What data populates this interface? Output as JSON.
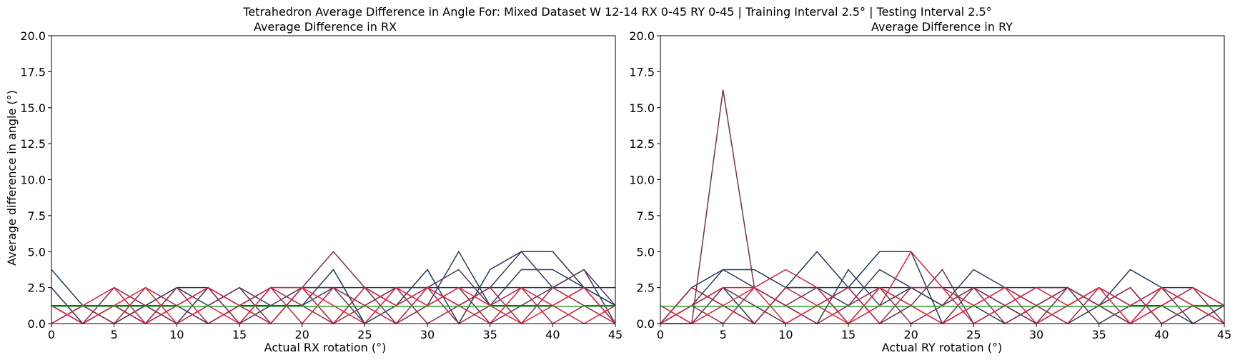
{
  "figure": {
    "suptitle": "Tetrahedron Average Difference in Angle For: Mixed Dataset W 12-14 RX 0-45 RY 0-45 | Training Interval 2.5° | Testing Interval 2.5°"
  },
  "colors": {
    "mean_line": "#2ca02c",
    "series_palette": [
      "#1b3a5c",
      "#2b3f5e",
      "#3a3a5a",
      "#5a3556",
      "#7a2f50",
      "#9a2b4c",
      "#b82747",
      "#d62343",
      "#e8263f"
    ]
  },
  "chart_data": [
    {
      "type": "line",
      "title": "Average Difference in RX",
      "xlabel": "Actual RX rotation (°)",
      "ylabel": "Average difference in angle (°)",
      "xlim": [
        0,
        45
      ],
      "ylim": [
        0,
        20
      ],
      "xticks": [
        "0",
        "5",
        "10",
        "15",
        "20",
        "25",
        "30",
        "35",
        "40",
        "45"
      ],
      "yticks": [
        "0.0",
        "2.5",
        "5.0",
        "7.5",
        "10.0",
        "12.5",
        "15.0",
        "17.5",
        "20.0"
      ],
      "grid": false,
      "x": [
        0,
        2.5,
        5,
        7.5,
        10,
        12.5,
        15,
        17.5,
        20,
        22.5,
        25,
        27.5,
        30,
        32.5,
        35,
        37.5,
        40,
        42.5,
        45
      ],
      "mean_value": 1.2,
      "series": [
        {
          "color": "#1b3a5c",
          "values": [
            3.75,
            1.25,
            0,
            1.25,
            2.5,
            2.5,
            1.25,
            2.5,
            2.5,
            2.5,
            2.5,
            2.5,
            2.5,
            2.5,
            2.5,
            2.5,
            2.5,
            2.5,
            2.5
          ]
        },
        {
          "color": "#1b3a5c",
          "values": [
            2.5,
            0,
            1.25,
            0,
            1.25,
            0,
            1.25,
            1.25,
            1.25,
            3.75,
            0,
            1.25,
            3.75,
            0,
            3.75,
            5.0,
            5.0,
            2.5,
            1.25
          ]
        },
        {
          "color": "#2b3f5e",
          "values": [
            1.25,
            1.25,
            1.25,
            0,
            2.5,
            1.25,
            2.5,
            1.25,
            1.25,
            2.5,
            1.25,
            2.5,
            1.25,
            5.0,
            1.25,
            3.75,
            3.75,
            2.5,
            0
          ]
        },
        {
          "color": "#3a3a5a",
          "values": [
            1.25,
            0,
            1.25,
            1.25,
            0,
            2.5,
            0,
            1.25,
            2.5,
            0,
            2.5,
            1.25,
            2.5,
            1.25,
            2.5,
            5.0,
            2.5,
            3.75,
            0
          ]
        },
        {
          "color": "#5a3556",
          "values": [
            0,
            1.25,
            0,
            1.25,
            1.25,
            0,
            1.25,
            0,
            2.5,
            2.5,
            0,
            2.5,
            2.5,
            3.75,
            1.25,
            1.25,
            2.5,
            3.75,
            1.25
          ]
        },
        {
          "color": "#7a2f50",
          "values": [
            1.25,
            0,
            2.5,
            1.25,
            0,
            1.25,
            2.5,
            0,
            2.5,
            5.0,
            2.5,
            0,
            1.25,
            2.5,
            0,
            1.25,
            1.25,
            2.5,
            0
          ]
        },
        {
          "color": "#9a2b4c",
          "values": [
            0,
            1.25,
            0,
            2.5,
            1.25,
            2.5,
            0,
            2.5,
            1.25,
            0,
            1.25,
            2.5,
            0,
            1.25,
            2.5,
            0,
            2.5,
            1.25,
            0
          ]
        },
        {
          "color": "#b82747",
          "values": [
            1.25,
            0,
            1.25,
            0,
            2.5,
            0,
            1.25,
            2.5,
            0,
            2.5,
            1.25,
            0,
            2.5,
            0,
            1.25,
            2.5,
            0,
            1.25,
            1.25
          ]
        },
        {
          "color": "#d62343",
          "values": [
            0,
            1.25,
            2.5,
            0,
            1.25,
            2.5,
            1.25,
            0,
            2.5,
            0,
            2.5,
            1.25,
            2.5,
            1.25,
            0,
            2.5,
            1.25,
            0,
            1.25
          ]
        },
        {
          "color": "#e8263f",
          "values": [
            1.25,
            0,
            1.25,
            2.5,
            0,
            1.25,
            0,
            2.5,
            2.5,
            1.25,
            0,
            2.5,
            1.25,
            2.5,
            1.25,
            0,
            1.25,
            2.5,
            0
          ]
        }
      ]
    },
    {
      "type": "line",
      "title": "Average Difference in RY",
      "xlabel": "Actual RY rotation (°)",
      "ylabel": "",
      "xlim": [
        0,
        45
      ],
      "ylim": [
        0,
        20
      ],
      "xticks": [
        "0",
        "5",
        "10",
        "15",
        "20",
        "25",
        "30",
        "35",
        "40",
        "45"
      ],
      "yticks": [
        "0.0",
        "2.5",
        "5.0",
        "7.5",
        "10.0",
        "12.5",
        "15.0",
        "17.5",
        "20.0"
      ],
      "grid": false,
      "x": [
        0,
        2.5,
        5,
        7.5,
        10,
        12.5,
        15,
        17.5,
        20,
        22.5,
        25,
        27.5,
        30,
        32.5,
        35,
        37.5,
        40,
        42.5,
        45
      ],
      "mean_value": 1.2,
      "series": [
        {
          "color": "#1b3a5c",
          "values": [
            0,
            2.5,
            3.75,
            3.75,
            2.5,
            2.5,
            2.5,
            2.5,
            2.5,
            2.5,
            2.5,
            2.5,
            2.5,
            2.5,
            1.25,
            3.75,
            2.5,
            2.5,
            1.25
          ]
        },
        {
          "color": "#1b3a5c",
          "values": [
            0,
            1.25,
            2.5,
            0,
            2.5,
            5.0,
            2.5,
            5.0,
            5.0,
            0,
            1.25,
            0,
            1.25,
            2.5,
            1.25,
            0,
            2.5,
            1.25,
            0
          ]
        },
        {
          "color": "#2b3f5e",
          "values": [
            0,
            1.25,
            3.75,
            2.5,
            1.25,
            0,
            3.75,
            1.25,
            2.5,
            1.25,
            2.5,
            1.25,
            0,
            1.25,
            2.5,
            1.25,
            1.25,
            0,
            1.25
          ]
        },
        {
          "color": "#3a3a5a",
          "values": [
            0,
            2.5,
            1.25,
            0,
            2.5,
            2.5,
            1.25,
            3.75,
            2.5,
            1.25,
            3.75,
            2.5,
            1.25,
            0,
            1.25,
            2.5,
            0,
            1.25,
            1.25
          ]
        },
        {
          "color": "#5a3556",
          "values": [
            0,
            0,
            2.5,
            1.25,
            0,
            1.25,
            2.5,
            0,
            1.25,
            3.75,
            0,
            1.25,
            2.5,
            2.5,
            0,
            1.25,
            2.5,
            0,
            1.25
          ]
        },
        {
          "color": "#7a2f50",
          "values": [
            1.25,
            0,
            16.25,
            2.5,
            1.25,
            2.5,
            0,
            2.5,
            1.25,
            0,
            2.5,
            1.25,
            0,
            2.5,
            1.25,
            0,
            1.25,
            2.5,
            0
          ]
        },
        {
          "color": "#9a2b4c",
          "values": [
            0,
            1.25,
            0,
            2.5,
            1.25,
            0,
            1.25,
            2.5,
            0,
            1.25,
            2.5,
            0,
            1.25,
            2.5,
            1.25,
            2.5,
            0,
            1.25,
            1.25
          ]
        },
        {
          "color": "#b82747",
          "values": [
            0,
            2.5,
            1.25,
            0,
            2.5,
            1.25,
            2.5,
            0,
            2.5,
            2.5,
            1.25,
            2.5,
            1.25,
            0,
            2.5,
            1.25,
            2.5,
            1.25,
            0
          ]
        },
        {
          "color": "#d62343",
          "values": [
            0,
            1.25,
            2.5,
            2.5,
            3.75,
            2.5,
            0,
            1.25,
            5.0,
            2.5,
            0,
            1.25,
            2.5,
            1.25,
            2.5,
            0,
            1.25,
            2.5,
            1.25
          ]
        },
        {
          "color": "#e8263f",
          "values": [
            1.25,
            0,
            1.25,
            2.5,
            0,
            1.25,
            0,
            2.5,
            1.25,
            0,
            1.25,
            2.5,
            0,
            1.25,
            2.5,
            0,
            2.5,
            1.25,
            0
          ]
        }
      ]
    }
  ]
}
